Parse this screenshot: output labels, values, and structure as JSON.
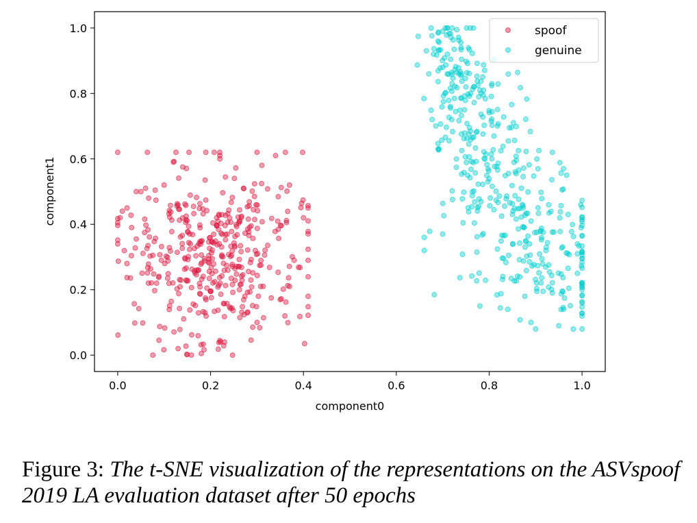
{
  "chart_data": {
    "type": "scatter",
    "xlabel": "component0",
    "ylabel": "component1",
    "xlim": [
      -0.05,
      1.05
    ],
    "ylim": [
      -0.05,
      1.05
    ],
    "xticks": [
      "0.0",
      "0.2",
      "0.4",
      "0.6",
      "0.8",
      "1.0"
    ],
    "yticks": [
      "0.0",
      "0.2",
      "0.4",
      "0.6",
      "0.8",
      "1.0"
    ],
    "legend_position": "top-right",
    "grid": false,
    "series": [
      {
        "name": "spoof",
        "color": "#dc143c",
        "center": [
          0.21,
          0.3
        ],
        "spread": [
          0.095,
          0.135
        ],
        "count": 420,
        "points": [
          [
            0.0,
            0.34
          ],
          [
            0.005,
            0.42
          ],
          [
            0.04,
            0.5
          ],
          [
            0.05,
            0.5
          ],
          [
            0.06,
            0.51
          ],
          [
            0.02,
            0.45
          ],
          [
            0.01,
            0.44
          ],
          [
            0.02,
            0.28
          ],
          [
            0.03,
            0.39
          ],
          [
            0.22,
            0.045
          ],
          [
            0.23,
            0.04
          ],
          [
            0.13,
            0.02
          ],
          [
            0.18,
            0.005
          ],
          [
            0.41,
            0.45
          ],
          [
            0.4,
            0.42
          ],
          [
            0.41,
            0.29
          ],
          [
            0.38,
            0.29
          ],
          [
            0.37,
            0.52
          ],
          [
            0.34,
            0.61
          ],
          [
            0.3,
            0.62
          ],
          [
            0.22,
            0.6
          ],
          [
            0.22,
            0.61
          ],
          [
            0.12,
            0.59
          ],
          [
            0.1,
            0.52
          ],
          [
            0.37,
            0.21
          ],
          [
            0.3,
            0.1
          ],
          [
            0.35,
            0.17
          ],
          [
            0.36,
            0.12
          ]
        ]
      },
      {
        "name": "genuine",
        "color": "#00cece",
        "center": [
          0.84,
          0.45
        ],
        "spread": [
          0.07,
          0.16
        ],
        "count": 430,
        "points": [
          [
            0.69,
            0.985
          ],
          [
            0.7,
            0.99
          ],
          [
            0.71,
            1.0
          ],
          [
            0.72,
            1.0
          ],
          [
            0.73,
            0.995
          ],
          [
            0.71,
            0.92
          ],
          [
            0.68,
            0.92
          ],
          [
            0.69,
            0.96
          ],
          [
            0.7,
            0.88
          ],
          [
            0.71,
            0.86
          ],
          [
            0.67,
            0.86
          ],
          [
            0.72,
            0.83
          ],
          [
            0.75,
            0.82
          ],
          [
            0.76,
            0.8
          ],
          [
            0.78,
            0.81
          ],
          [
            0.69,
            0.63
          ],
          [
            0.66,
            0.36
          ],
          [
            0.66,
            0.32
          ],
          [
            0.7,
            0.37
          ],
          [
            0.78,
            0.15
          ],
          [
            0.84,
            0.14
          ],
          [
            0.89,
            0.1
          ],
          [
            0.9,
            0.08
          ],
          [
            0.95,
            0.09
          ],
          [
            0.96,
            0.14
          ],
          [
            0.99,
            0.25
          ],
          [
            0.99,
            0.31
          ],
          [
            0.97,
            0.43
          ],
          [
            0.96,
            0.57
          ],
          [
            0.99,
            0.34
          ]
        ]
      }
    ]
  },
  "caption": {
    "label": "Figure 3:",
    "text": "The t-SNE visualization of the representations on the ASVspoof 2019 LA evaluation dataset after 50 epochs"
  }
}
